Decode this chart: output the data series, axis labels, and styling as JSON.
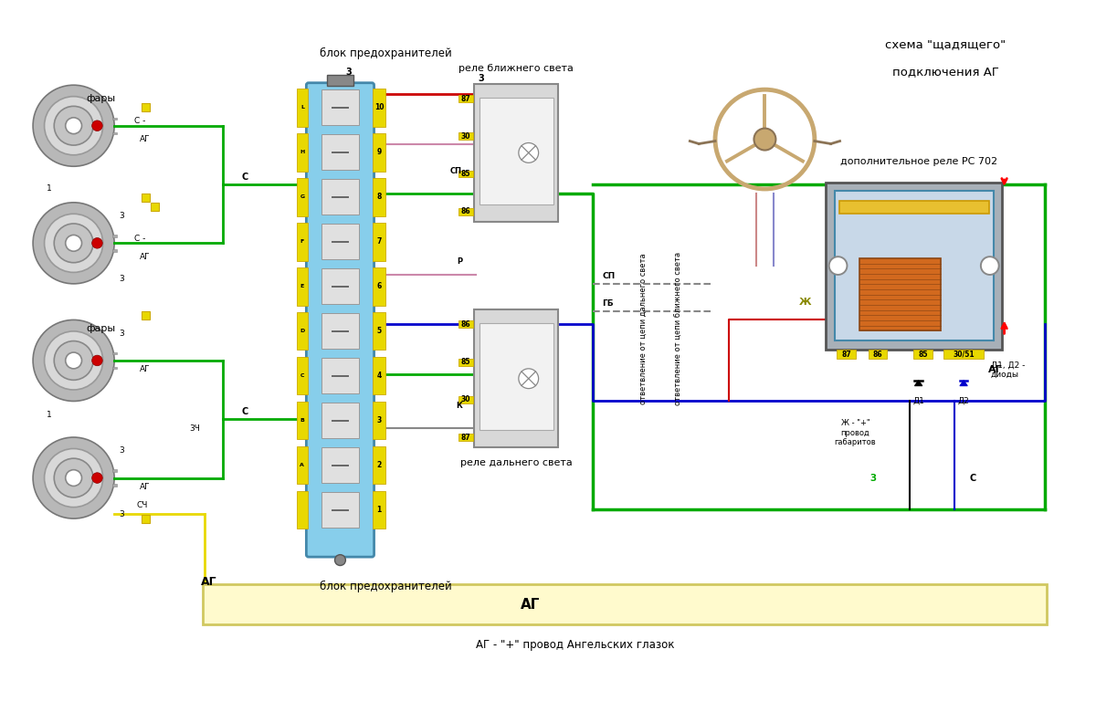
{
  "bg_color": "#ffffff",
  "fig_width": 12.0,
  "fig_height": 7.8,
  "labels": {
    "fary_top": "фары",
    "fary_bottom": "фары",
    "blok_pred_top": "блок предохранителей",
    "blok_pred_bottom": "блок предохранителей",
    "rele_blizh": "реле ближнего света",
    "rele_daln": "реле дальнего света",
    "schema_title1": "схема \"щадящего\"",
    "schema_title2": "подключения АГ",
    "dop_rele": "дополнительное реле РС 702",
    "ag_caption": "АГ - \"+\" провод Ангельских глазок",
    "ot_cep_daln": "ответвление от цепи дальнего света",
    "ot_cep_blizh": "ответвление от цепи ближнего света",
    "zh_provod": "Ж - \"+\"\nпровод\nгабаритов",
    "d1_d2_diody": "Д1, Д2 -\nдиоды",
    "fuse_left_letters": [
      "L",
      "L",
      "H",
      "H",
      "G",
      "G",
      "F",
      "F",
      "E",
      "E",
      "D",
      "D",
      "C",
      "C",
      "B",
      "B",
      "A",
      "A"
    ],
    "fuse_right_numbers": [
      "10",
      "9",
      "8",
      "7",
      "6",
      "5",
      "4",
      "3",
      "2",
      "1"
    ]
  },
  "colors": {
    "green": "#00aa00",
    "yellow": "#e8d800",
    "blue": "#0000cc",
    "red": "#cc0000",
    "light_yellow": "#fffacd",
    "relay_bg": "#c8d8e8",
    "fuse_bg": "#87CEEB",
    "tan": "#c8a870",
    "coil_color": "#d2691e"
  }
}
